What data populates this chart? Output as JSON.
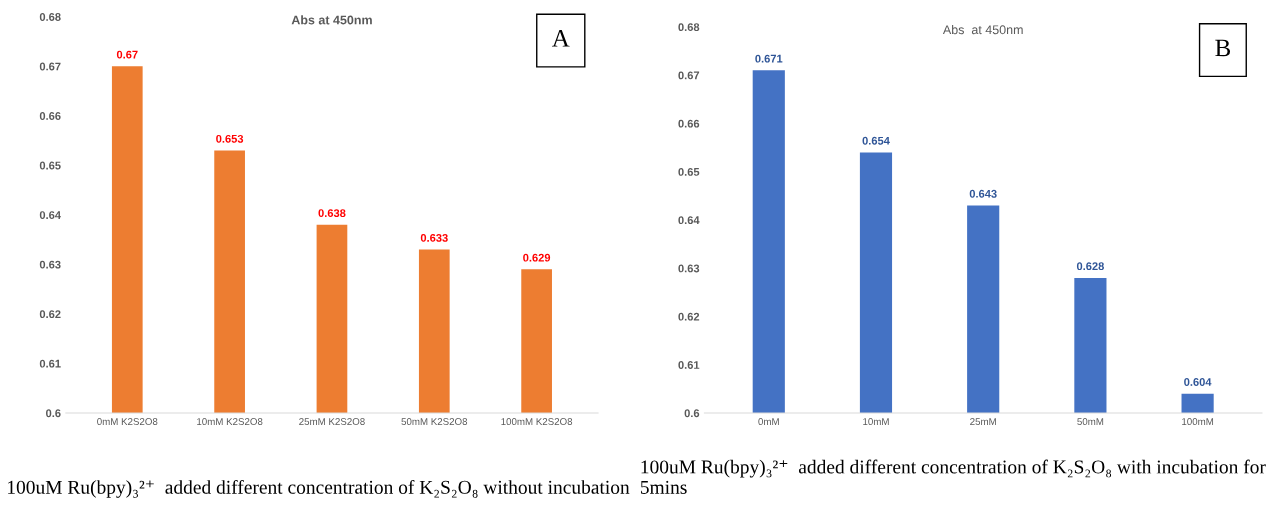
{
  "chart_data": [
    {
      "type": "bar",
      "title": "Abs at 450nm",
      "categories": [
        "0mM K2S2O8",
        "10mM K2S2O8",
        "25mM K2S2O8",
        "50mM K2S2O8",
        "100mM K2S2O8"
      ],
      "values": [
        0.67,
        0.653,
        0.638,
        0.633,
        0.629
      ],
      "color": "#ed7d31",
      "ylim": [
        0.6,
        0.68
      ],
      "yticks": [
        0.6,
        0.61,
        0.62,
        0.63,
        0.64,
        0.65,
        0.66,
        0.67,
        0.68
      ],
      "data_labels": true,
      "grid": false,
      "annotations": [
        "A",
        "100uM Ru(bpy)₃²⁺  added different concentration of K₂S₂O₈ without incubation"
      ]
    },
    {
      "type": "bar",
      "title": "Abs  at 450nm",
      "categories": [
        "0mM",
        "10mM",
        "25mM",
        "50mM",
        "100mM"
      ],
      "values": [
        0.671,
        0.654,
        0.643,
        0.628,
        0.604
      ],
      "color": "#4472c4",
      "ylim": [
        0.6,
        0.68
      ],
      "yticks": [
        0.6,
        0.61,
        0.62,
        0.63,
        0.64,
        0.65,
        0.66,
        0.67,
        0.68
      ],
      "data_labels": true,
      "grid": false,
      "annotations": [
        "B",
        "100uM Ru(bpy)₃²⁺  added different concentration of K₂S₂O₈ with incubation for 5mins"
      ]
    }
  ]
}
